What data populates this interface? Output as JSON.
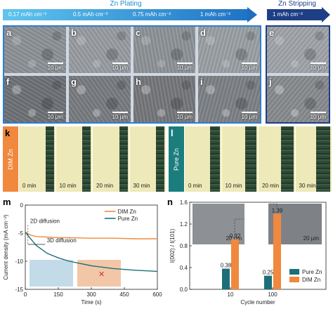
{
  "arrows": {
    "plating_title": "Zn Plating",
    "plating_labels": [
      "0.17 mAh cm⁻²",
      "0.5 mAh cm⁻²",
      "0.75 mAh cm⁻²",
      "1 mAh cm⁻²"
    ],
    "stripping_title": "Zn Stripping",
    "stripping_label": "1 mAh cm⁻²"
  },
  "sem": {
    "top_row": [
      {
        "letter": "a",
        "scale": "10 μm"
      },
      {
        "letter": "b",
        "scale": "10 μm"
      },
      {
        "letter": "c",
        "scale": "10 μm"
      },
      {
        "letter": "d",
        "scale": "10 μm"
      },
      {
        "letter": "e",
        "scale": "10 μm"
      }
    ],
    "bottom_row": [
      {
        "letter": "f",
        "scale": "10 μm"
      },
      {
        "letter": "g",
        "scale": "10 μm"
      },
      {
        "letter": "h",
        "scale": "10 μm"
      },
      {
        "letter": "i",
        "scale": "10 μm"
      },
      {
        "letter": "j",
        "scale": "10 μm"
      }
    ]
  },
  "strip_k": {
    "letter": "k",
    "side_label": "DIM Zn",
    "side_color": "#f0883e",
    "times": [
      "0 min",
      "10 min",
      "20 min",
      "30 min"
    ]
  },
  "strip_l": {
    "letter": "l",
    "side_label": "Pure Zn",
    "side_color": "#1c7d7d",
    "times": [
      "0 min",
      "10 min",
      "20 min",
      "30 min"
    ]
  },
  "panel_m": {
    "letter": "m",
    "ylabel": "Current density (mA cm⁻²)",
    "xlabel": "Time (s)",
    "yticks": [
      "0",
      "-5",
      "-10",
      "-15"
    ],
    "xticks": [
      "0",
      "150",
      "300",
      "450",
      "600"
    ],
    "legend": [
      "DIM Zn",
      "Pure Zn"
    ],
    "annotation_2d": "2D diffusion",
    "annotation_3d": "3D diffusion",
    "colors": {
      "dim": "#f0883e",
      "pure": "#1c6f7a"
    }
  },
  "panel_n": {
    "letter": "n",
    "ylabel": "I(002) / I(101)",
    "xlabel": "Cycle number",
    "yticks": [
      "0.0",
      "0.4",
      "0.8",
      "1.2",
      "1.6"
    ],
    "xticks": [
      "10",
      "100"
    ],
    "legend": [
      "Pure Zn",
      "DIM Zn"
    ],
    "scale_left": "20 μm",
    "scale_right": "20 μm",
    "colors": {
      "pure": "#1c6f7a",
      "dim": "#f0883e"
    }
  },
  "chart_data": [
    {
      "type": "line",
      "xlabel": "Time (s)",
      "ylabel": "Current density (mA cm⁻²)",
      "xlim": [
        0,
        600
      ],
      "ylim": [
        -15,
        0
      ],
      "series": [
        {
          "name": "DIM Zn",
          "x": [
            0,
            20,
            50,
            100,
            150,
            200,
            300,
            400,
            500,
            600
          ],
          "y": [
            -4.8,
            -5.3,
            -5.6,
            -5.7,
            -5.8,
            -5.8,
            -5.9,
            -5.9,
            -6.0,
            -6.0
          ]
        },
        {
          "name": "Pure Zn",
          "x": [
            0,
            20,
            50,
            100,
            150,
            200,
            300,
            400,
            500,
            600
          ],
          "y": [
            -4.8,
            -5.8,
            -7.2,
            -8.6,
            -9.4,
            -10.0,
            -10.8,
            -11.3,
            -11.6,
            -11.8
          ]
        }
      ]
    },
    {
      "type": "bar",
      "xlabel": "Cycle number",
      "ylabel": "I(002) / I(101)",
      "categories": [
        "10",
        "100"
      ],
      "ylim": [
        0,
        1.6
      ],
      "series": [
        {
          "name": "Pure Zn",
          "values": [
            0.38,
            0.25
          ]
        },
        {
          "name": "DIM Zn",
          "values": [
            0.92,
            1.39
          ]
        }
      ]
    }
  ]
}
